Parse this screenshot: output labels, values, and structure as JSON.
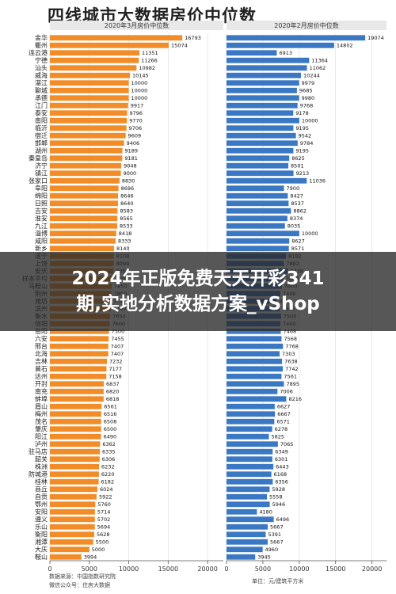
{
  "title": "四线城市大数据房价中位数",
  "banner": {
    "line1": "2024年正版免费天天开彩341",
    "line2": "期,实地分析数据方案_vShop"
  },
  "footer": {
    "source1": "数据来源：中国指数研究院",
    "source2": "微信公众号：住房大数据",
    "xlabel": "单位：元/建筑平方米"
  },
  "colors": {
    "left_bar": "#f28c28",
    "right_bar": "#3b78c4"
  },
  "chart_data": [
    {
      "type": "bar",
      "orientation": "horizontal",
      "title": "2020年3月房价中位数",
      "xlim": [
        0,
        22000
      ],
      "xticks": [
        0,
        5000,
        10000,
        15000,
        20000
      ],
      "categories": [
        "金华",
        "衢州",
        "连云港",
        "宁德",
        "汕头",
        "威海",
        "湛江",
        "聊城",
        "承德",
        "江门",
        "泰安",
        "南阳",
        "临沂",
        "宿迁",
        "邯郸",
        "湖州",
        "秦皇岛",
        "济宁",
        "镇江",
        "张家口",
        "阜阳",
        "绵阳",
        "日照",
        "吉安",
        "淮安",
        "九江",
        "淄博",
        "咸阳",
        "新乡",
        "遂宁",
        "上饶",
        "安庆",
        "样本平均",
        "马鞍山",
        "荆州",
        "潍坊",
        "滨州",
        "衡水",
        "信阳",
        "岳阳",
        "六安",
        "邢台",
        "北海",
        "吉林",
        "黄石",
        "达州",
        "开封",
        "南充",
        "蚌埠",
        "眉山",
        "梅州",
        "茂名",
        "肇庆",
        "阳江",
        "泸州",
        "驻马店",
        "韶关",
        "株洲",
        "防城港",
        "桂林",
        "商丘",
        "自贡",
        "鄂州",
        "安阳",
        "遵义",
        "乐山",
        "衡阳",
        "湘潭",
        "大庆",
        "鞍山"
      ],
      "values": [
        16793,
        15074,
        11351,
        11266,
        10982,
        10145,
        10000,
        10000,
        10000,
        9917,
        9796,
        9770,
        9706,
        9609,
        9406,
        9189,
        9181,
        9048,
        9000,
        8830,
        8696,
        8646,
        8640,
        8583,
        8565,
        8533,
        8418,
        8333,
        8140,
        8108,
        8099,
        8051,
        7900,
        7850,
        7800,
        7749,
        7700,
        7650,
        7600,
        7500,
        7455,
        7407,
        7407,
        7232,
        7177,
        7158,
        6837,
        6820,
        6818,
        6561,
        6516,
        6508,
        6500,
        6490,
        6362,
        6335,
        6306,
        6232,
        6220,
        6182,
        6024,
        5922,
        5760,
        5714,
        5702,
        5694,
        5628,
        5500,
        5000,
        3994
      ]
    },
    {
      "type": "bar",
      "orientation": "horizontal",
      "title": "2020年2月房价中位数",
      "xlim": [
        0,
        22000
      ],
      "xticks": [
        0,
        5000,
        10000,
        15000,
        20000
      ],
      "categories": [
        "金华",
        "衢州",
        "连云港",
        "宁德",
        "汕头",
        "威海",
        "湛江",
        "聊城",
        "承德",
        "江门",
        "泰安",
        "南阳",
        "临沂",
        "宿迁",
        "邯郸",
        "湖州",
        "秦皇岛",
        "济宁",
        "镇江",
        "张家口",
        "阜阳",
        "绵阳",
        "日照",
        "吉安",
        "淮安",
        "九江",
        "淄博",
        "咸阳",
        "新乡",
        "遂宁",
        "上饶",
        "安庆",
        "样本平均",
        "马鞍山",
        "荆州",
        "潍坊",
        "滨州",
        "衡水",
        "信阳",
        "岳阳",
        "六安",
        "邢台",
        "北海",
        "吉林",
        "黄石",
        "达州",
        "开封",
        "南充",
        "蚌埠",
        "眉山",
        "梅州",
        "茂名",
        "肇庆",
        "阳江",
        "泸州",
        "驻马店",
        "韶关",
        "株洲",
        "防城港",
        "桂林",
        "商丘",
        "自贡",
        "鄂州",
        "安阳",
        "遵义",
        "乐山",
        "衡阳",
        "湘潭",
        "大庆",
        "鞍山"
      ],
      "values": [
        19074,
        14802,
        6913,
        11364,
        11062,
        10244,
        9979,
        9685,
        9980,
        9768,
        9178,
        10000,
        9195,
        9542,
        9784,
        9195,
        8625,
        8501,
        9213,
        11036,
        7900,
        8427,
        8537,
        8862,
        8374,
        8035,
        10000,
        8627,
        8571,
        8182,
        7882,
        8438,
        7800,
        7600,
        7400,
        6916,
        7300,
        7500,
        7400,
        7468,
        7568,
        7768,
        7303,
        7638,
        7742,
        7561,
        7895,
        7006,
        8216,
        6627,
        6667,
        6571,
        6278,
        5825,
        7065,
        6349,
        6301,
        6443,
        6168,
        6356,
        5928,
        5558,
        5946,
        4180,
        6496,
        5667,
        5391,
        5667,
        4960,
        3945
      ]
    }
  ]
}
